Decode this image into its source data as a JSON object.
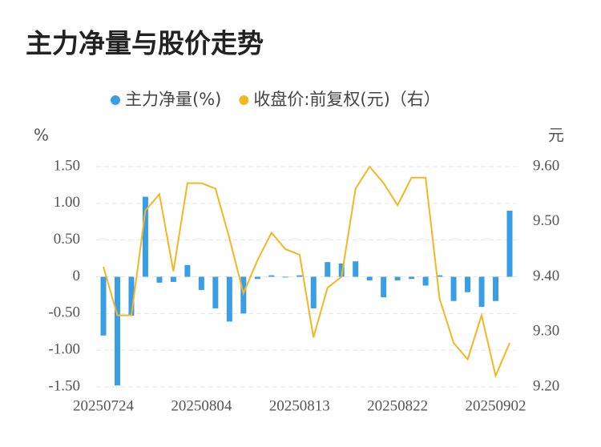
{
  "chart_data": {
    "type": "bar_line",
    "title": "主力净量与股价走势",
    "y_label": "%",
    "y2_label": "元",
    "categories": [
      "20250724",
      null,
      null,
      null,
      null,
      null,
      null,
      "20250804",
      null,
      null,
      null,
      null,
      null,
      null,
      "20250813",
      null,
      null,
      null,
      null,
      null,
      null,
      "20250822",
      null,
      null,
      null,
      null,
      null,
      null,
      "20250902",
      null
    ],
    "series": [
      {
        "name": "主力净量(%)",
        "type": "bar",
        "color": "#3a9ee6",
        "values": [
          -0.8,
          -1.48,
          -0.53,
          1.09,
          -0.08,
          -0.07,
          0.16,
          -0.18,
          -0.43,
          -0.61,
          -0.5,
          -0.03,
          0.02,
          -0.01,
          0.02,
          -0.43,
          0.2,
          0.18,
          0.21,
          -0.05,
          -0.28,
          -0.05,
          -0.03,
          -0.12,
          0.02,
          -0.33,
          -0.21,
          -0.41,
          -0.33,
          0.9
        ]
      },
      {
        "name": "收盘价:前复权(元)（右）",
        "type": "line",
        "axis": "y2",
        "color": "#f4b621",
        "values": [
          9.418,
          9.33,
          9.33,
          9.52,
          9.55,
          9.41,
          9.57,
          9.57,
          9.56,
          9.47,
          9.37,
          9.43,
          9.48,
          9.45,
          9.44,
          9.29,
          9.38,
          9.4,
          9.56,
          9.6,
          9.57,
          9.53,
          9.58,
          9.58,
          9.36,
          9.28,
          9.25,
          9.33,
          9.22,
          9.28
        ]
      }
    ],
    "ylim": [
      -1.5,
      1.5
    ],
    "yticks": [
      {
        "value": 1.5,
        "label": "1.50"
      },
      {
        "value": 1.0,
        "label": "1.00"
      },
      {
        "value": 0.5,
        "label": "0.50"
      },
      0,
      {
        "value": -0.5,
        "label": "-0.50"
      },
      {
        "value": -1.0,
        "label": "-1.00"
      },
      {
        "value": -1.5,
        "label": "-1.50"
      }
    ],
    "y2lim": [
      9.2,
      9.6
    ],
    "y2ticks": [
      {
        "value": 9.6,
        "label": "9.60"
      },
      {
        "value": 9.5,
        "label": "9.50"
      },
      {
        "value": 9.4,
        "label": "9.40"
      },
      {
        "value": 9.3,
        "label": "9.30"
      },
      {
        "value": 9.2,
        "label": "9.20"
      }
    ],
    "grid": true,
    "legend": "top"
  }
}
